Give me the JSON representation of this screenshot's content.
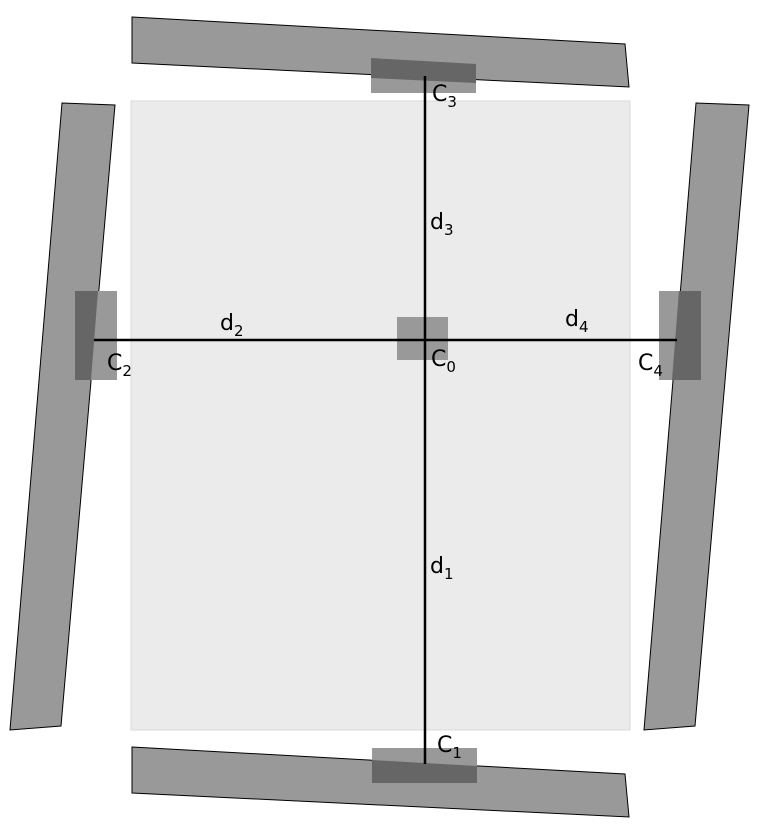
{
  "labels": {
    "c0": {
      "main": "C",
      "sub": "0"
    },
    "c1": {
      "main": "C",
      "sub": "1"
    },
    "c2": {
      "main": "C",
      "sub": "2"
    },
    "c3": {
      "main": "C",
      "sub": "3"
    },
    "c4": {
      "main": "C",
      "sub": "4"
    },
    "d1": {
      "main": "d",
      "sub": "1"
    },
    "d2": {
      "main": "d",
      "sub": "2"
    },
    "d3": {
      "main": "d",
      "sub": "3"
    },
    "d4": {
      "main": "d",
      "sub": "4"
    }
  },
  "colors": {
    "panel": "#999999",
    "panel_stroke": "#000000",
    "overlap": "#666666",
    "center_block": "#999999",
    "background_rect": "#ebebeb",
    "background_stroke": "#d8d8d8",
    "line": "#000000"
  }
}
